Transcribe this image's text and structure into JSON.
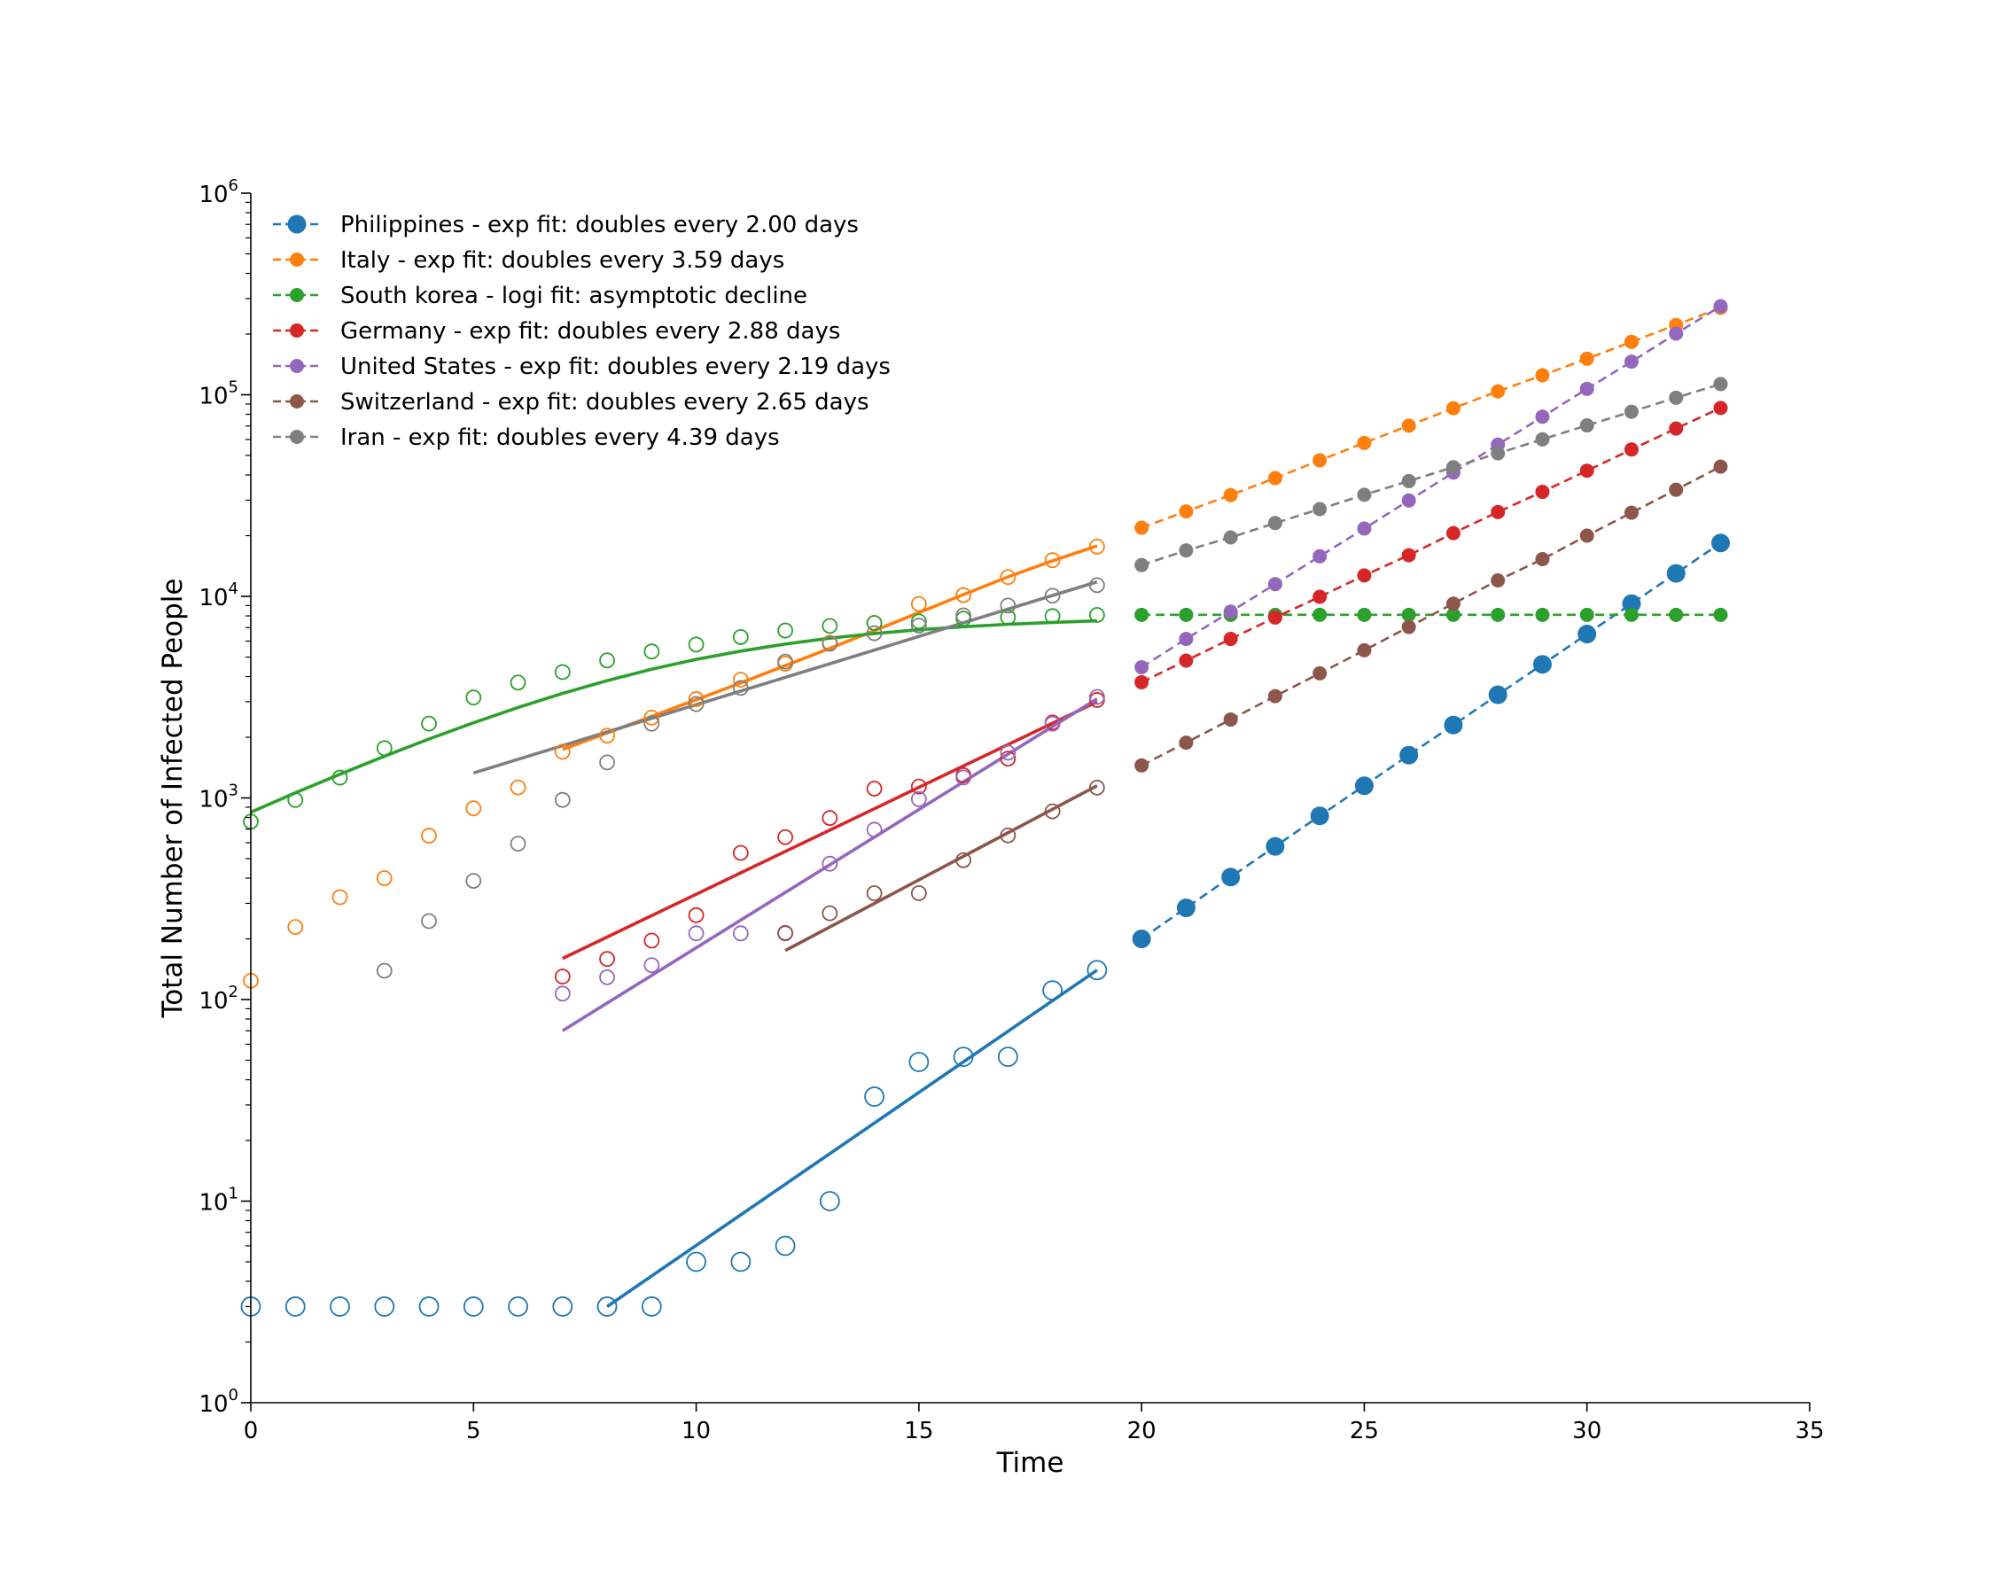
{
  "chart_data": {
    "type": "scatter",
    "title": "",
    "xlabel": "Time",
    "ylabel": "Total Number of Infected People",
    "xlim": [
      0,
      35
    ],
    "ylim": [
      1,
      1000000
    ],
    "yscale": "log",
    "x_ticks": [
      0,
      5,
      10,
      15,
      20,
      25,
      30,
      35
    ],
    "y_ticks": [
      {
        "value": 1,
        "base": "10",
        "exp": "0"
      },
      {
        "value": 10,
        "base": "10",
        "exp": "1"
      },
      {
        "value": 100,
        "base": "10",
        "exp": "2"
      },
      {
        "value": 1000,
        "base": "10",
        "exp": "3"
      },
      {
        "value": 10000,
        "base": "10",
        "exp": "4"
      },
      {
        "value": 100000,
        "base": "10",
        "exp": "5"
      },
      {
        "value": 1000000,
        "base": "10",
        "exp": "6"
      }
    ],
    "grid": false,
    "legend_position": "top-left",
    "series": [
      {
        "name": "Philippines - exp fit: doubles every 2.00 days",
        "color": "#1f77b4",
        "marker_size": "large",
        "observed": {
          "x": [
            0,
            1,
            2,
            3,
            4,
            5,
            6,
            7,
            8,
            9,
            10,
            11,
            12,
            13,
            14,
            15,
            16,
            17,
            18,
            19
          ],
          "y": [
            3,
            3,
            3,
            3,
            3,
            3,
            3,
            3,
            3,
            3,
            5,
            5,
            6,
            10,
            33,
            49,
            52,
            52,
            111,
            140
          ]
        },
        "fit": {
          "x": [
            8,
            19
          ],
          "y": [
            3,
            140
          ]
        },
        "forecast": {
          "x": [
            20,
            21,
            22,
            23,
            24,
            25,
            26,
            27,
            28,
            29,
            30,
            31,
            32,
            33
          ],
          "y": [
            200,
            285,
            405,
            575,
            815,
            1150,
            1630,
            2300,
            3250,
            4600,
            6500,
            9200,
            13000,
            18400
          ]
        }
      },
      {
        "name": "Italy - exp fit: doubles every 3.59 days",
        "color": "#ff7f0e",
        "marker_size": "small",
        "observed": {
          "x": [
            0,
            1,
            2,
            3,
            4,
            5,
            6,
            7,
            8,
            9,
            10,
            11,
            12,
            13,
            14,
            15,
            16,
            17,
            18,
            19
          ],
          "y": [
            124,
            229,
            322,
            400,
            650,
            888,
            1128,
            1694,
            2036,
            2502,
            3089,
            3858,
            4636,
            5883,
            7375,
            9172,
            10149,
            12462,
            15113,
            17660
          ]
        },
        "fit": {
          "x": [
            7,
            8,
            9,
            10,
            11,
            12,
            13,
            14,
            15,
            16,
            17,
            18,
            19
          ],
          "y": [
            1740,
            2100,
            2540,
            3070,
            3720,
            4530,
            5520,
            6760,
            8310,
            10200,
            12500,
            15000,
            17800
          ]
        },
        "forecast": {
          "x": [
            20,
            21,
            22,
            23,
            24,
            25,
            26,
            27,
            28,
            29,
            30,
            31,
            32,
            33
          ],
          "y": [
            21900,
            26400,
            31800,
            38600,
            47300,
            57700,
            70300,
            85700,
            104000,
            125000,
            151000,
            183000,
            222000,
            270000
          ]
        }
      },
      {
        "name": "South korea - logi fit: asymptotic decline",
        "color": "#2ca02c",
        "marker_size": "small",
        "observed": {
          "x": [
            0,
            1,
            2,
            3,
            4,
            5,
            6,
            7,
            8,
            9,
            10,
            11,
            12,
            13,
            14,
            15,
            16,
            17,
            18,
            19
          ],
          "y": [
            763,
            977,
            1261,
            1766,
            2337,
            3150,
            3736,
            4212,
            4812,
            5328,
            5766,
            6284,
            6767,
            7134,
            7382,
            7513,
            7755,
            7869,
            7979,
            8086
          ]
        },
        "fit": {
          "x": [
            0,
            1,
            2,
            3,
            4,
            5,
            6,
            7,
            8,
            9,
            10,
            11,
            12,
            13,
            14,
            15,
            16,
            17,
            18,
            19
          ],
          "y": [
            850,
            1060,
            1310,
            1610,
            1960,
            2360,
            2810,
            3300,
            3820,
            4350,
            4870,
            5350,
            5800,
            6200,
            6540,
            6830,
            7070,
            7270,
            7430,
            7560
          ]
        },
        "forecast": {
          "x": [
            20,
            21,
            22,
            23,
            24,
            25,
            26,
            27,
            28,
            29,
            30,
            31,
            32,
            33
          ],
          "y": [
            8100,
            8100,
            8100,
            8100,
            8100,
            8100,
            8100,
            8100,
            8100,
            8100,
            8100,
            8100,
            8100,
            8100
          ]
        }
      },
      {
        "name": "Germany - exp fit: doubles every 2.88 days",
        "color": "#d62728",
        "marker_size": "small",
        "observed": {
          "x": [
            7,
            8,
            9,
            10,
            11,
            12,
            13,
            14,
            15,
            16,
            17,
            18,
            19
          ],
          "y": [
            130,
            159,
            196,
            262,
            534,
            639,
            795,
            1112,
            1139,
            1296,
            1567,
            2369,
            3062
          ]
        },
        "fit": {
          "x": [
            7,
            19
          ],
          "y": [
            160,
            3000
          ]
        },
        "forecast": {
          "x": [
            20,
            21,
            22,
            23,
            24,
            25,
            26,
            27,
            28,
            29,
            30,
            31,
            32,
            33
          ],
          "y": [
            3750,
            4800,
            6150,
            7850,
            9950,
            12700,
            16000,
            20600,
            26200,
            33000,
            42000,
            53500,
            68000,
            86000
          ]
        }
      },
      {
        "name": "United States - exp fit: doubles every 2.19 days",
        "color": "#9467bd",
        "marker_size": "small",
        "observed": {
          "x": [
            7,
            8,
            9,
            10,
            11,
            12,
            13,
            14,
            15,
            16,
            17,
            18,
            19
          ],
          "y": [
            107,
            129,
            148,
            213,
            213,
            213,
            472,
            696,
            987,
            1264,
            1678,
            2336,
            3170
          ]
        },
        "fit": {
          "x": [
            7,
            19
          ],
          "y": [
            70,
            3100
          ]
        },
        "forecast": {
          "x": [
            20,
            21,
            22,
            23,
            24,
            25,
            26,
            27,
            28,
            29,
            30,
            31,
            32,
            33
          ],
          "y": [
            4450,
            6150,
            8400,
            11500,
            15800,
            21700,
            29900,
            41100,
            56600,
            77800,
            107000,
            146000,
            201000,
            275000
          ]
        }
      },
      {
        "name": "Switzerland - exp fit: doubles every 2.65 days",
        "color": "#8c564b",
        "marker_size": "small",
        "observed": {
          "x": [
            12,
            13,
            14,
            15,
            16,
            17,
            18,
            19
          ],
          "y": [
            214,
            268,
            337,
            337,
            491,
            652,
            858,
            1125
          ]
        },
        "fit": {
          "x": [
            12,
            19
          ],
          "y": [
            175,
            1150
          ]
        },
        "forecast": {
          "x": [
            20,
            21,
            22,
            23,
            24,
            25,
            26,
            27,
            28,
            29,
            30,
            31,
            32,
            33
          ],
          "y": [
            1450,
            1880,
            2450,
            3200,
            4150,
            5400,
            7050,
            9200,
            12000,
            15300,
            20000,
            26000,
            33800,
            44000
          ]
        }
      },
      {
        "name": "Iran - exp fit: doubles every 4.39 days",
        "color": "#7f7f7f",
        "marker_size": "small",
        "observed": {
          "x": [
            3,
            4,
            5,
            6,
            7,
            8,
            9,
            10,
            11,
            12,
            13,
            14,
            15,
            16,
            17,
            18,
            19
          ],
          "y": [
            139,
            245,
            388,
            593,
            978,
            1501,
            2336,
            2922,
            3513,
            4747,
            5823,
            6566,
            7161,
            8042,
            9000,
            10075,
            11364
          ]
        },
        "fit": {
          "x": [
            5,
            19
          ],
          "y": [
            1330,
            11800
          ]
        },
        "forecast": {
          "x": [
            20,
            21,
            22,
            23,
            24,
            25,
            26,
            27,
            28,
            29,
            30,
            31,
            32,
            33
          ],
          "y": [
            14300,
            16900,
            19600,
            23100,
            27100,
            31900,
            37300,
            43700,
            51200,
            60100,
            70500,
            82400,
            96700,
            113000
          ]
        }
      }
    ]
  }
}
